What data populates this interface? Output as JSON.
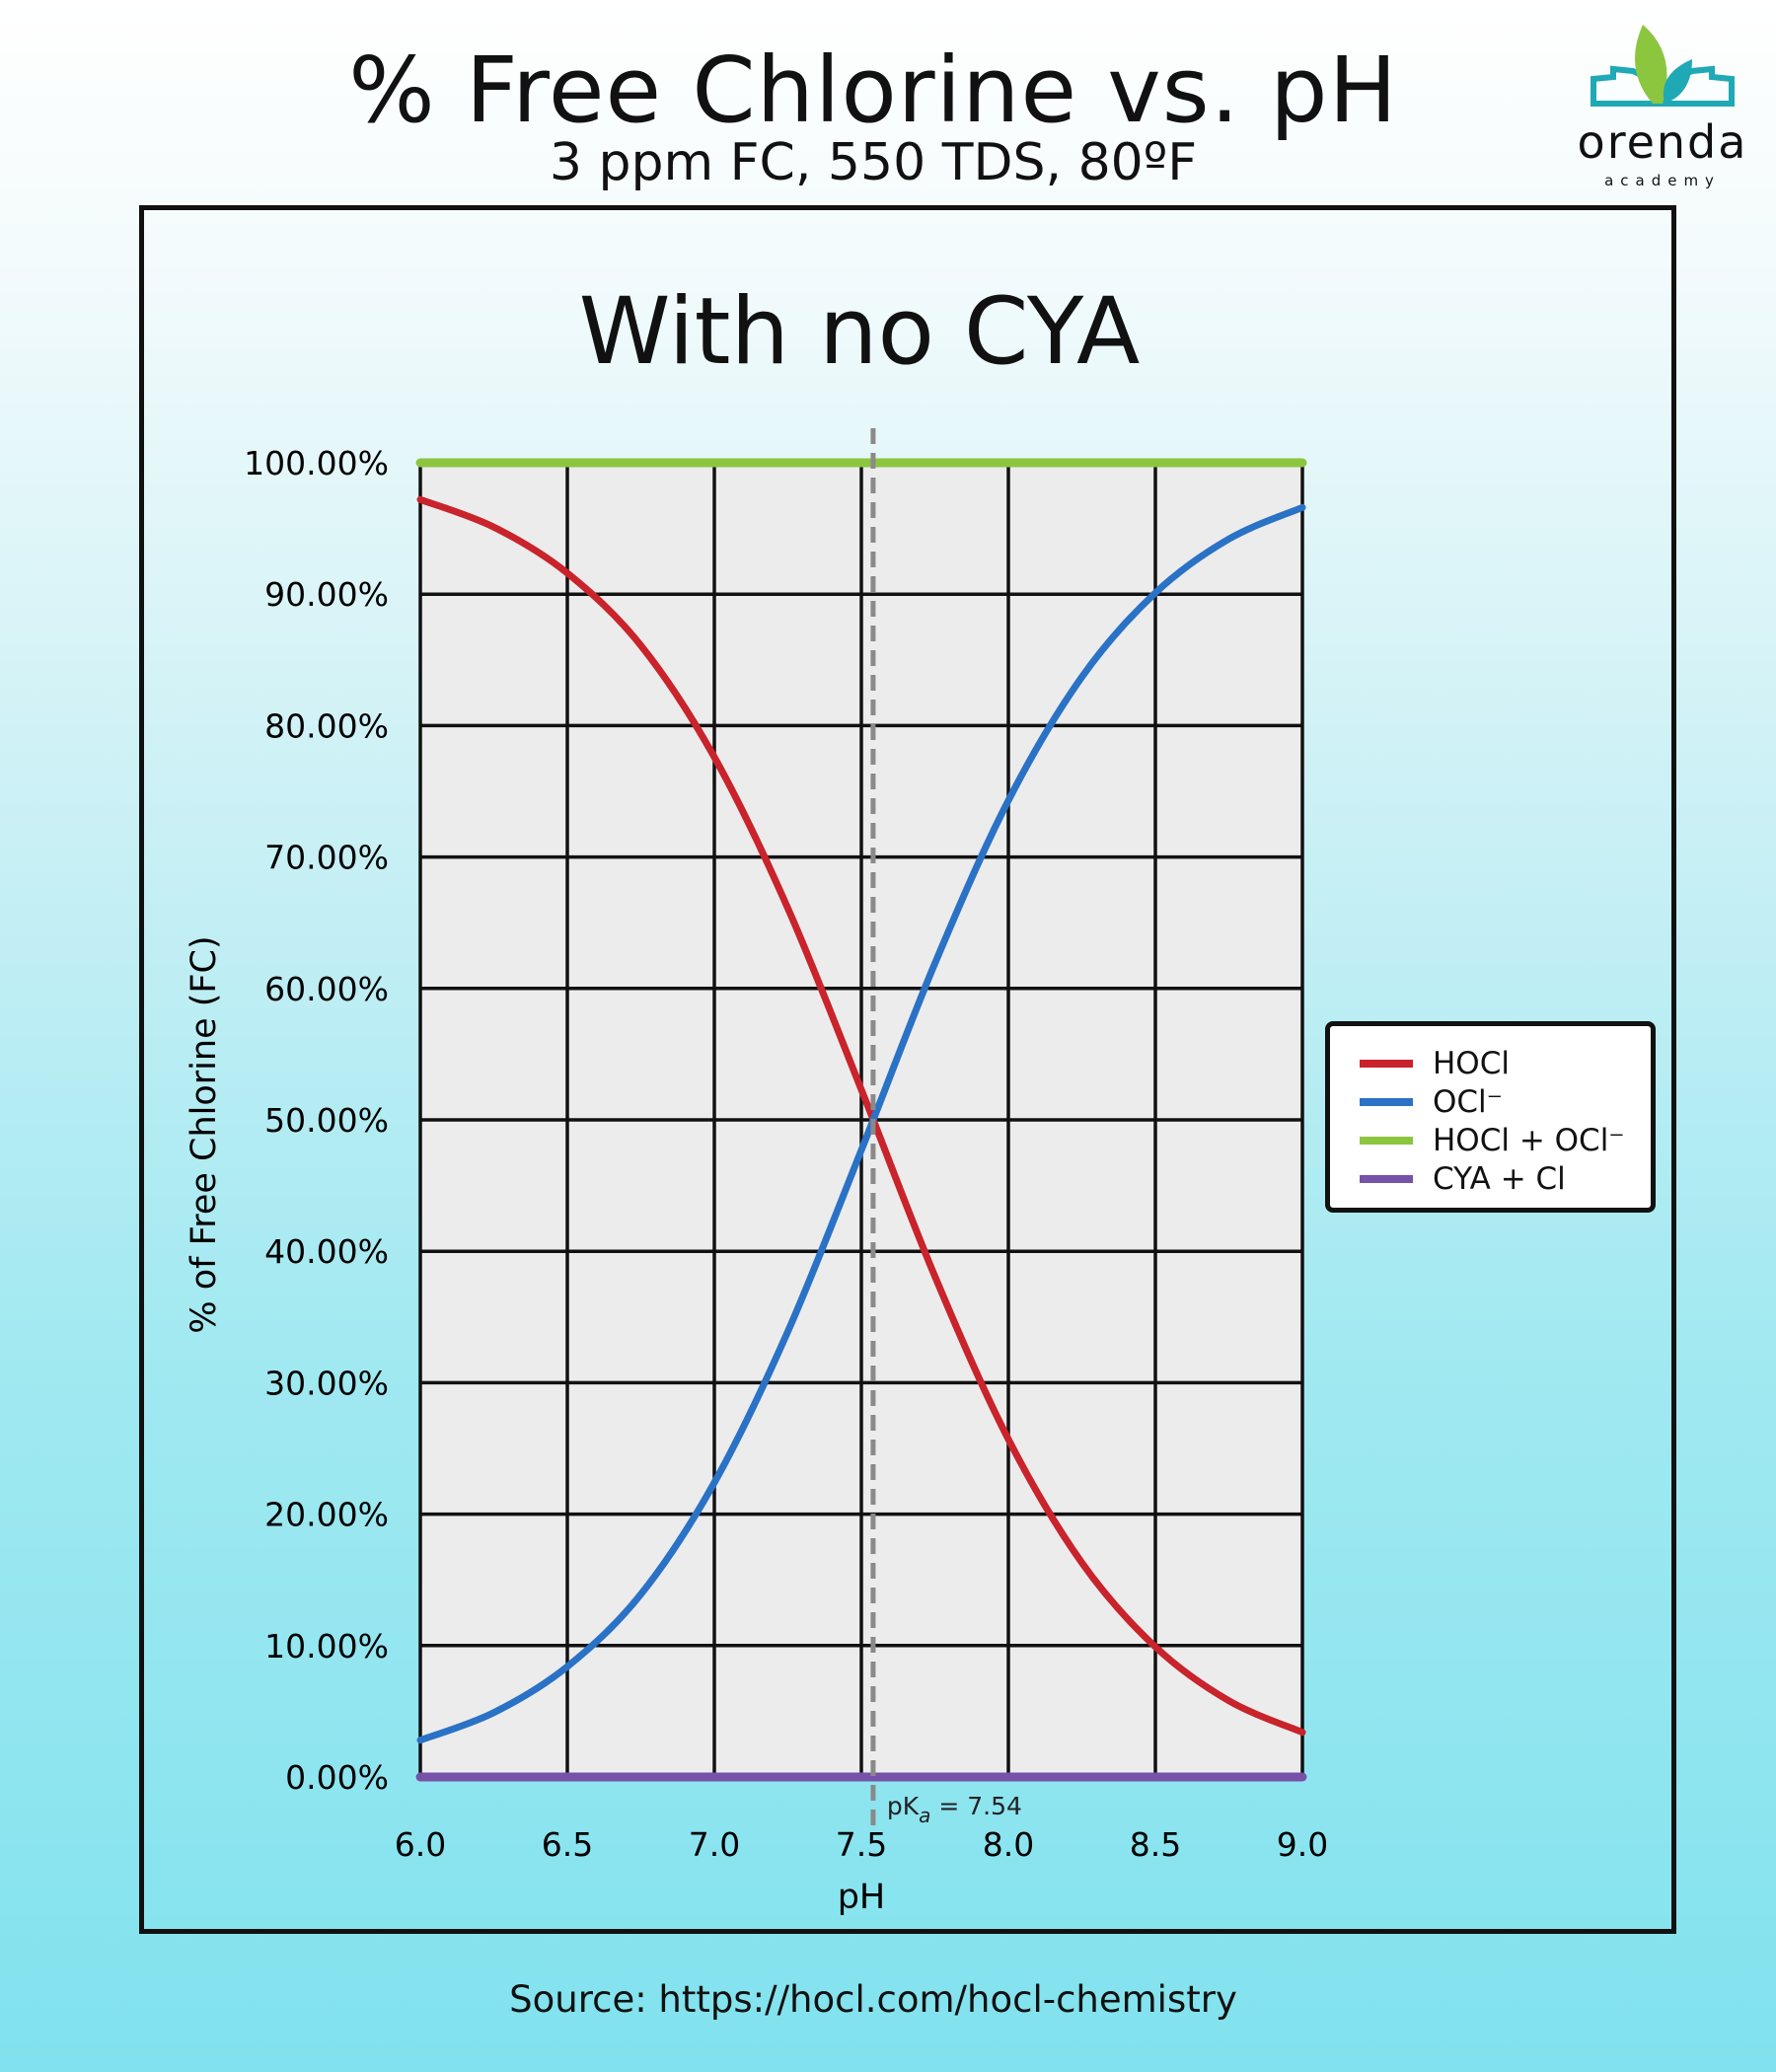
{
  "header": {
    "title": "% Free Chlorine vs. pH",
    "subtitle": "3 ppm FC, 550 TDS, 80ºF",
    "logo": {
      "name": "orenda",
      "tagline": "academy",
      "colors": {
        "leaf_green": "#8cc63f",
        "teal": "#1fa9b5"
      }
    }
  },
  "footer": {
    "source": "Source:  https://hocl.com/hocl-chemistry"
  },
  "chart_data": {
    "type": "line",
    "title": "With no CYA",
    "xlabel": "pH",
    "ylabel": "% of Free Chlorine (FC)",
    "xlim": [
      6.0,
      9.0
    ],
    "ylim": [
      0,
      100
    ],
    "grid": true,
    "x_ticks": [
      "6.0",
      "6.5",
      "7.0",
      "7.5",
      "8.0",
      "8.5",
      "9.0"
    ],
    "y_ticks": [
      "0.00%",
      "10.00%",
      "20.00%",
      "30.00%",
      "40.00%",
      "50.00%",
      "60.00%",
      "70.00%",
      "80.00%",
      "90.00%",
      "100.00%"
    ],
    "legend_placement": "right",
    "annotation": {
      "text_main": "pK",
      "text_sub": "a",
      "text_rest": " = 7.54",
      "x": 7.54,
      "style": "dashed vertical line",
      "color": "#8a8a8a"
    },
    "x": [
      6.0,
      6.25,
      6.5,
      6.75,
      7.0,
      7.25,
      7.5,
      7.75,
      8.0,
      8.25,
      8.5,
      8.75,
      9.0
    ],
    "series": [
      {
        "name": "HOCl",
        "color": "#c9232b",
        "values": [
          97.2,
          95.1,
          91.6,
          86.1,
          77.6,
          66.1,
          52.3,
          38.1,
          25.7,
          16.3,
          9.9,
          5.8,
          3.4
        ]
      },
      {
        "name": "OCl⁻",
        "color": "#2a72c6",
        "values": [
          2.8,
          4.9,
          8.4,
          13.9,
          22.4,
          33.9,
          47.7,
          61.9,
          74.3,
          83.7,
          90.1,
          94.2,
          96.6
        ]
      },
      {
        "name": "HOCl + OCl⁻",
        "color": "#8cc63f",
        "values": [
          100,
          100,
          100,
          100,
          100,
          100,
          100,
          100,
          100,
          100,
          100,
          100,
          100
        ]
      },
      {
        "name": "CYA + Cl",
        "color": "#7652a8",
        "values": [
          0,
          0,
          0,
          0,
          0,
          0,
          0,
          0,
          0,
          0,
          0,
          0,
          0
        ]
      }
    ],
    "plot_background": "#ececec"
  }
}
